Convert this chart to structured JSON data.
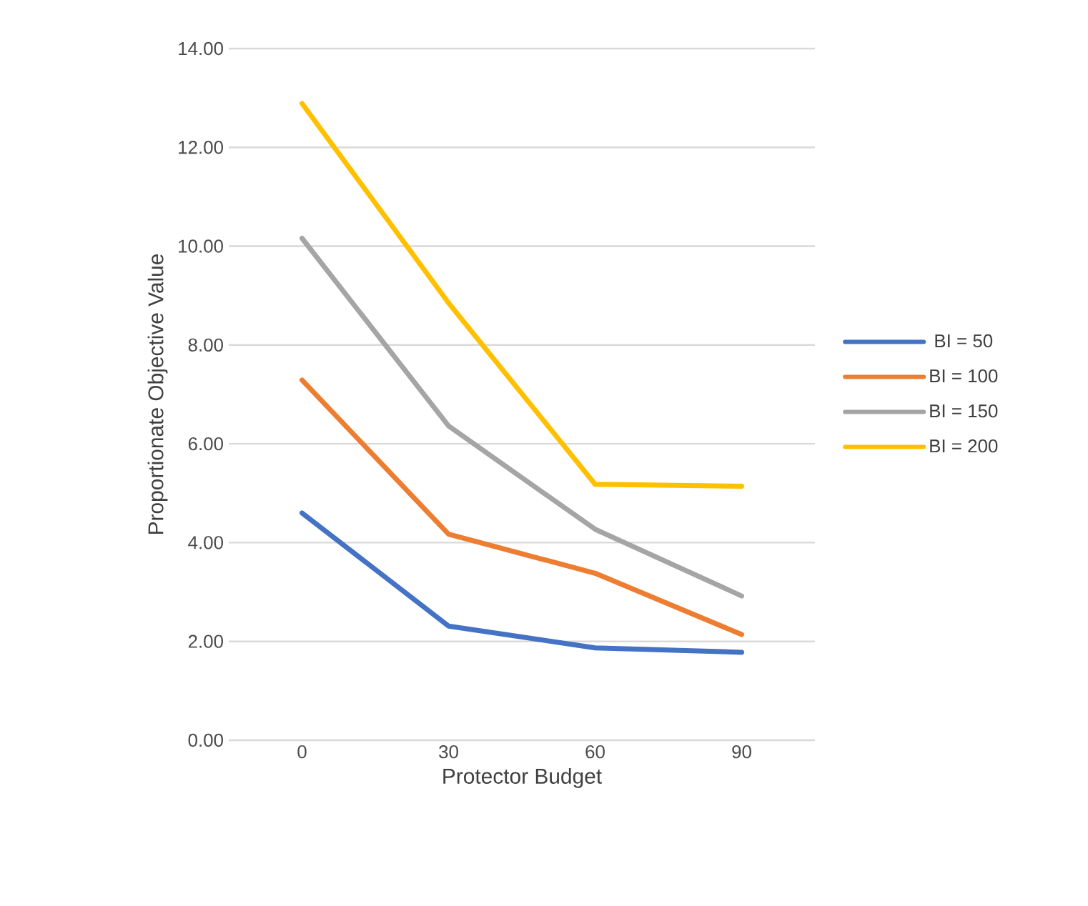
{
  "chart_data": {
    "type": "line",
    "xlabel": "Protector Budget",
    "ylabel": "Proportionate Objective Value",
    "categories": [
      "0",
      "30",
      "60",
      "90"
    ],
    "series": [
      {
        "name": "BI = 50",
        "color": "#4472c4",
        "values": [
          4.6,
          2.31,
          1.87,
          1.78
        ]
      },
      {
        "name": "BI = 100",
        "color": "#ed7d31",
        "values": [
          7.29,
          4.17,
          3.38,
          2.14
        ]
      },
      {
        "name": "BI = 150",
        "color": "#a5a5a5",
        "values": [
          10.16,
          6.36,
          4.27,
          2.92
        ]
      },
      {
        "name": "BI = 200",
        "color": "#ffc000",
        "values": [
          12.89,
          8.85,
          5.18,
          5.14
        ]
      }
    ],
    "ylim": [
      0,
      14
    ],
    "yticks": [
      {
        "value": 0,
        "label": "0.00"
      },
      {
        "value": 2,
        "label": "2.00"
      },
      {
        "value": 4,
        "label": "4.00"
      },
      {
        "value": 6,
        "label": "6.00"
      },
      {
        "value": 8,
        "label": "8.00"
      },
      {
        "value": 10,
        "label": "10.00"
      },
      {
        "value": 12,
        "label": "12.00"
      },
      {
        "value": 14,
        "label": "14.00"
      }
    ],
    "grid": "y",
    "legend": "right",
    "marker": "none",
    "line_style": "solid"
  }
}
